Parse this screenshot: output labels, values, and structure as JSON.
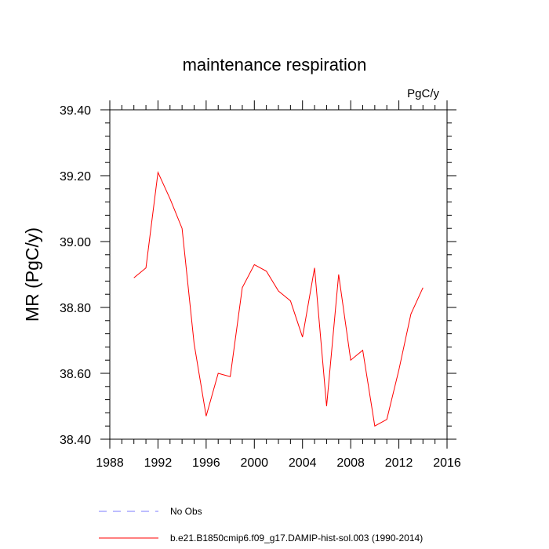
{
  "chart_data": {
    "type": "line",
    "title": "maintenance respiration",
    "units_label": "PgC/y",
    "ylabel": "MR  (PgC/y)",
    "xlabel": "",
    "xlim": [
      1988,
      2016
    ],
    "ylim": [
      38.4,
      39.4
    ],
    "x_ticks": [
      "1988",
      "1992",
      "1996",
      "2000",
      "2004",
      "2008",
      "2012",
      "2016"
    ],
    "y_ticks": [
      "38.40",
      "38.60",
      "38.80",
      "39.00",
      "39.20",
      "39.40"
    ],
    "x_tick_values": [
      1988,
      1992,
      1996,
      2000,
      2004,
      2008,
      2012,
      2016
    ],
    "y_tick_values": [
      38.4,
      38.6,
      38.8,
      39.0,
      39.2,
      39.4
    ],
    "grid": false,
    "legend_position": "bottom",
    "series": [
      {
        "name": "No Obs",
        "color": "#7b7bff",
        "dash": "dashed",
        "x": [],
        "values": []
      },
      {
        "name": "b.e21.B1850cmip6.f09_g17.DAMIP-hist-sol.003 (1990-2014)",
        "color": "#ff0000",
        "dash": "solid",
        "x": [
          1990,
          1991,
          1992,
          1993,
          1994,
          1995,
          1996,
          1997,
          1998,
          1999,
          2000,
          2001,
          2002,
          2003,
          2004,
          2005,
          2006,
          2007,
          2008,
          2009,
          2010,
          2011,
          2012,
          2013,
          2014
        ],
        "values": [
          38.89,
          38.92,
          39.21,
          39.13,
          39.04,
          38.69,
          38.47,
          38.6,
          38.59,
          38.86,
          38.93,
          38.91,
          38.85,
          38.82,
          38.71,
          38.92,
          38.5,
          38.9,
          38.64,
          38.67,
          38.44,
          38.46,
          38.61,
          38.78,
          38.86
        ]
      }
    ]
  }
}
